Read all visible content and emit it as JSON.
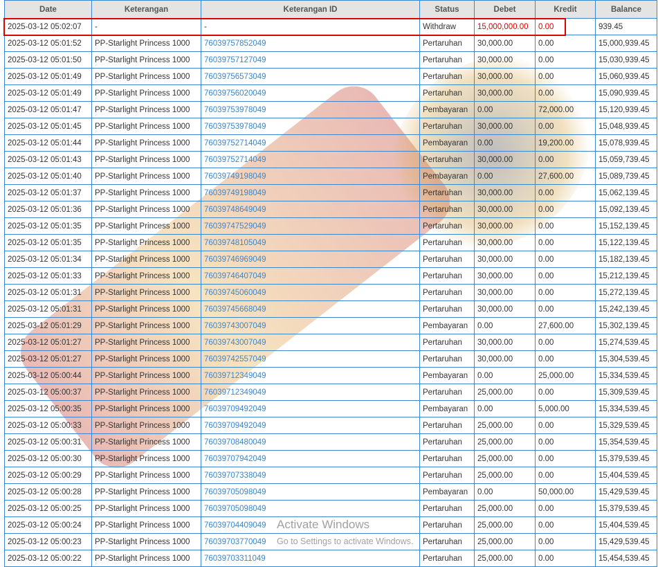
{
  "columns": [
    "Date",
    "Keterangan",
    "Keterangan ID",
    "Status",
    "Debet",
    "Kredit",
    "Balance"
  ],
  "rows": [
    [
      "2025-03-12 05:02:07",
      "-",
      "-",
      "Withdraw",
      "15,000,000.00",
      "0.00",
      "939.45"
    ],
    [
      "2025-03-12 05:01:52",
      "PP-Starlight Princess 1000",
      "76039757852049",
      "Pertaruhan",
      "30,000.00",
      "0.00",
      "15,000,939.45"
    ],
    [
      "2025-03-12 05:01:50",
      "PP-Starlight Princess 1000",
      "76039757127049",
      "Pertaruhan",
      "30,000.00",
      "0.00",
      "15,030,939.45"
    ],
    [
      "2025-03-12 05:01:49",
      "PP-Starlight Princess 1000",
      "76039756573049",
      "Pertaruhan",
      "30,000.00",
      "0.00",
      "15,060,939.45"
    ],
    [
      "2025-03-12 05:01:49",
      "PP-Starlight Princess 1000",
      "76039756020049",
      "Pertaruhan",
      "30,000.00",
      "0.00",
      "15,090,939.45"
    ],
    [
      "2025-03-12 05:01:47",
      "PP-Starlight Princess 1000",
      "76039753978049",
      "Pembayaran",
      "0.00",
      "72,000.00",
      "15,120,939.45"
    ],
    [
      "2025-03-12 05:01:45",
      "PP-Starlight Princess 1000",
      "76039753978049",
      "Pertaruhan",
      "30,000.00",
      "0.00",
      "15,048,939.45"
    ],
    [
      "2025-03-12 05:01:44",
      "PP-Starlight Princess 1000",
      "76039752714049",
      "Pembayaran",
      "0.00",
      "19,200.00",
      "15,078,939.45"
    ],
    [
      "2025-03-12 05:01:43",
      "PP-Starlight Princess 1000",
      "76039752714049",
      "Pertaruhan",
      "30,000.00",
      "0.00",
      "15,059,739.45"
    ],
    [
      "2025-03-12 05:01:40",
      "PP-Starlight Princess 1000",
      "76039749198049",
      "Pembayaran",
      "0.00",
      "27,600.00",
      "15,089,739.45"
    ],
    [
      "2025-03-12 05:01:37",
      "PP-Starlight Princess 1000",
      "76039749198049",
      "Pertaruhan",
      "30,000.00",
      "0.00",
      "15,062,139.45"
    ],
    [
      "2025-03-12 05:01:36",
      "PP-Starlight Princess 1000",
      "76039748649049",
      "Pertaruhan",
      "30,000.00",
      "0.00",
      "15,092,139.45"
    ],
    [
      "2025-03-12 05:01:35",
      "PP-Starlight Princess 1000",
      "76039747529049",
      "Pertaruhan",
      "30,000.00",
      "0.00",
      "15,152,139.45"
    ],
    [
      "2025-03-12 05:01:35",
      "PP-Starlight Princess 1000",
      "76039748105049",
      "Pertaruhan",
      "30,000.00",
      "0.00",
      "15,122,139.45"
    ],
    [
      "2025-03-12 05:01:34",
      "PP-Starlight Princess 1000",
      "76039746969049",
      "Pertaruhan",
      "30,000.00",
      "0.00",
      "15,182,139.45"
    ],
    [
      "2025-03-12 05:01:33",
      "PP-Starlight Princess 1000",
      "76039746407049",
      "Pertaruhan",
      "30,000.00",
      "0.00",
      "15,212,139.45"
    ],
    [
      "2025-03-12 05:01:31",
      "PP-Starlight Princess 1000",
      "76039745060049",
      "Pertaruhan",
      "30,000.00",
      "0.00",
      "15,272,139.45"
    ],
    [
      "2025-03-12 05:01:31",
      "PP-Starlight Princess 1000",
      "76039745668049",
      "Pertaruhan",
      "30,000.00",
      "0.00",
      "15,242,139.45"
    ],
    [
      "2025-03-12 05:01:29",
      "PP-Starlight Princess 1000",
      "76039743007049",
      "Pembayaran",
      "0.00",
      "27,600.00",
      "15,302,139.45"
    ],
    [
      "2025-03-12 05:01:27",
      "PP-Starlight Princess 1000",
      "76039743007049",
      "Pertaruhan",
      "30,000.00",
      "0.00",
      "15,274,539.45"
    ],
    [
      "2025-03-12 05:01:27",
      "PP-Starlight Princess 1000",
      "76039742557049",
      "Pertaruhan",
      "30,000.00",
      "0.00",
      "15,304,539.45"
    ],
    [
      "2025-03-12 05:00:44",
      "PP-Starlight Princess 1000",
      "76039712349049",
      "Pembayaran",
      "0.00",
      "25,000.00",
      "15,334,539.45"
    ],
    [
      "2025-03-12 05:00:37",
      "PP-Starlight Princess 1000",
      "76039712349049",
      "Pertaruhan",
      "25,000.00",
      "0.00",
      "15,309,539.45"
    ],
    [
      "2025-03-12 05:00:35",
      "PP-Starlight Princess 1000",
      "76039709492049",
      "Pembayaran",
      "0.00",
      "5,000.00",
      "15,334,539.45"
    ],
    [
      "2025-03-12 05:00:33",
      "PP-Starlight Princess 1000",
      "76039709492049",
      "Pertaruhan",
      "25,000.00",
      "0.00",
      "15,329,539.45"
    ],
    [
      "2025-03-12 05:00:31",
      "PP-Starlight Princess 1000",
      "76039708480049",
      "Pertaruhan",
      "25,000.00",
      "0.00",
      "15,354,539.45"
    ],
    [
      "2025-03-12 05:00:30",
      "PP-Starlight Princess 1000",
      "76039707942049",
      "Pertaruhan",
      "25,000.00",
      "0.00",
      "15,379,539.45"
    ],
    [
      "2025-03-12 05:00:29",
      "PP-Starlight Princess 1000",
      "76039707338049",
      "Pertaruhan",
      "25,000.00",
      "0.00",
      "15,404,539.45"
    ],
    [
      "2025-03-12 05:00:28",
      "PP-Starlight Princess 1000",
      "76039705098049",
      "Pembayaran",
      "0.00",
      "50,000.00",
      "15,429,539.45"
    ],
    [
      "2025-03-12 05:00:25",
      "PP-Starlight Princess 1000",
      "76039705098049",
      "Pertaruhan",
      "25,000.00",
      "0.00",
      "15,379,539.45"
    ],
    [
      "2025-03-12 05:00:24",
      "PP-Starlight Princess 1000",
      "76039704409049",
      "Pertaruhan",
      "25,000.00",
      "0.00",
      "15,404,539.45"
    ],
    [
      "2025-03-12 05:00:23",
      "PP-Starlight Princess 1000",
      "76039703770049",
      "Pertaruhan",
      "25,000.00",
      "0.00",
      "15,429,539.45"
    ],
    [
      "2025-03-12 05:00:22",
      "PP-Starlight Princess 1000",
      "76039703311049",
      "Pertaruhan",
      "25,000.00",
      "0.00",
      "15,454,539.45"
    ]
  ],
  "highlighted_row": 0,
  "colors": {
    "border": "#3a86cf",
    "link": "#3a86cf",
    "highlight": "#e00000",
    "header_bg": "#e4e4e4"
  },
  "os_notice": {
    "title": "Activate Windows",
    "subtitle": "Go to Settings to activate Windows."
  }
}
